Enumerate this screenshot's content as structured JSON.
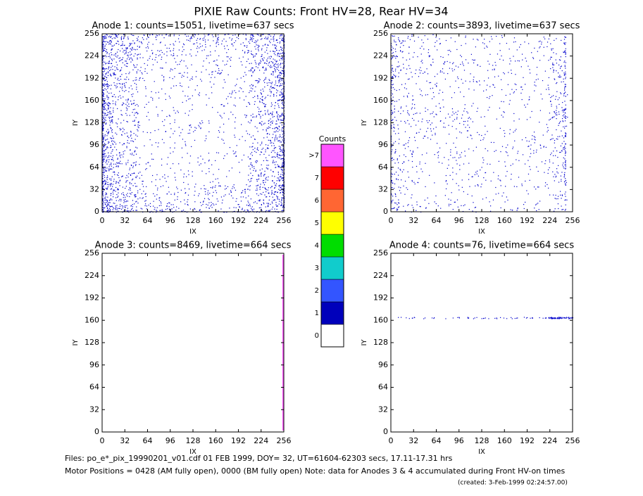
{
  "title": "PIXIE Raw Counts:  Front HV=28, Rear HV=34",
  "panels": [
    {
      "title": "Anode 1: counts=15051, livetime=637 secs",
      "xlabel": "IX",
      "ylabel": "IY",
      "xlim": [
        0,
        256
      ],
      "ylim": [
        0,
        256
      ],
      "xticks": [
        0,
        32,
        64,
        96,
        128,
        160,
        192,
        224,
        256
      ],
      "yticks": [
        0,
        32,
        64,
        96,
        128,
        160,
        192,
        224,
        256
      ]
    },
    {
      "title": "Anode 2: counts=3893, livetime=637 secs",
      "xlabel": "IX",
      "ylabel": "IY",
      "xlim": [
        0,
        256
      ],
      "ylim": [
        0,
        256
      ],
      "xticks": [
        0,
        32,
        64,
        96,
        128,
        160,
        192,
        224,
        256
      ],
      "yticks": [
        0,
        32,
        64,
        96,
        128,
        160,
        192,
        224,
        256
      ]
    },
    {
      "title": "Anode 3: counts=8469, livetime=664 secs",
      "xlabel": "IX",
      "ylabel": "IY",
      "xlim": [
        0,
        256
      ],
      "ylim": [
        0,
        256
      ],
      "xticks": [
        0,
        32,
        64,
        96,
        128,
        160,
        192,
        224,
        256
      ],
      "yticks": [
        0,
        32,
        64,
        96,
        128,
        160,
        192,
        224,
        256
      ]
    },
    {
      "title": "Anode 4: counts=76, livetime=664 secs",
      "xlabel": "IX",
      "ylabel": "IY",
      "xlim": [
        0,
        256
      ],
      "ylim": [
        0,
        256
      ],
      "xticks": [
        0,
        32,
        64,
        96,
        128,
        160,
        192,
        224,
        256
      ],
      "yticks": [
        0,
        32,
        64,
        96,
        128,
        160,
        192,
        224,
        256
      ]
    }
  ],
  "colorbar": {
    "title": "Counts",
    "labels": [
      "0",
      "1",
      "2",
      "3",
      "4",
      "5",
      "6",
      "7",
      ">7"
    ],
    "colors": [
      "#ffffff",
      "#0000bb",
      "#3355ff",
      "#11cccc",
      "#00dd00",
      "#ffff00",
      "#ff6633",
      "#ff0000",
      "#ff55ff"
    ]
  },
  "footer": [
    "Files: po_e*_pix_19990201_v01.cdf    01 FEB 1999, DOY= 32, UT=61604-62303 secs, 17.11-17.31 hrs",
    "Motor Positions = 0428 (AM fully open), 0000 (BM fully open)    Note: data for Anodes 3 & 4 accumulated during Front HV-on times",
    "(created:  3-Feb-1999 02:24:57.00)"
  ]
}
